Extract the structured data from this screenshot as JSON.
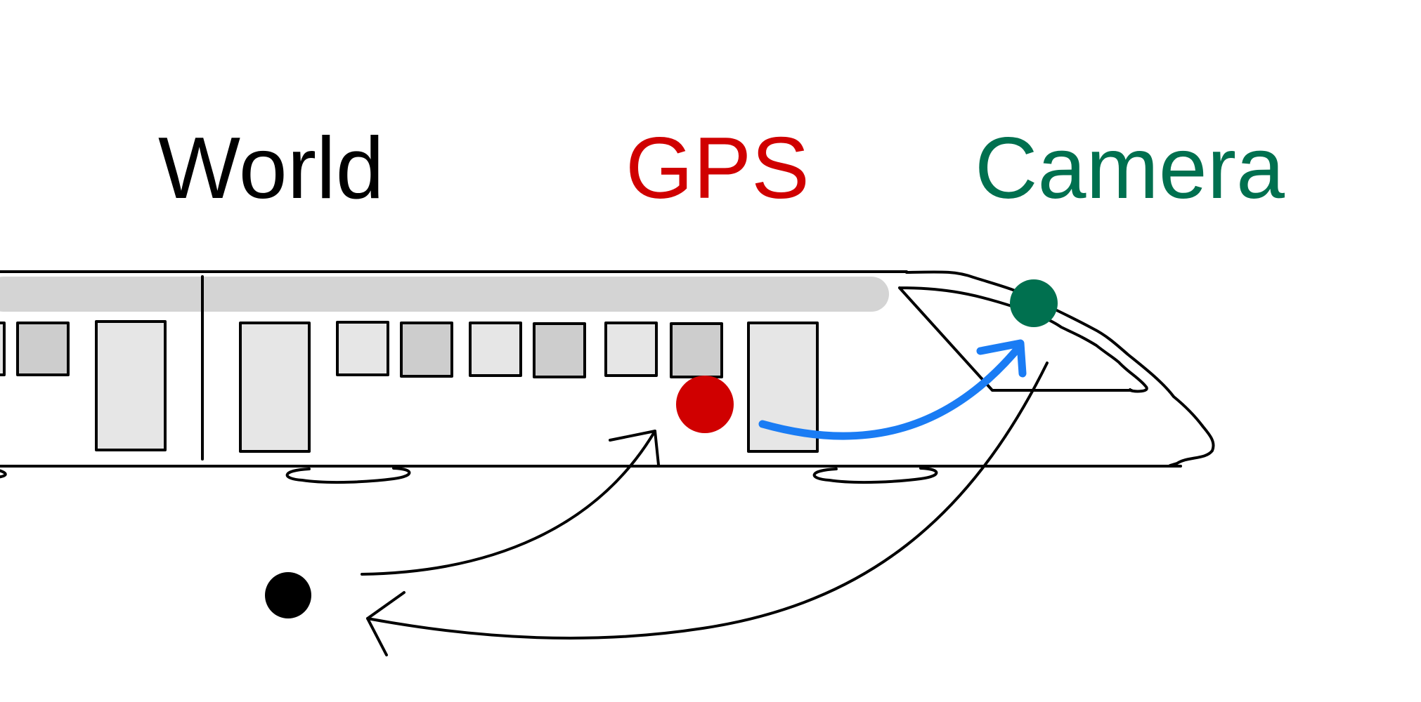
{
  "labels": {
    "world": "World",
    "gps": "GPS",
    "camera": "Camera"
  },
  "colors": {
    "world": "#000000",
    "gps": "#d00000",
    "camera": "#00704f",
    "transform_arrow": "#1a7cf4",
    "outline": "#000000",
    "roof_band": "#d4d4d4",
    "window_light": "#e6e6e6",
    "window_dark": "#cdcdcd"
  },
  "icons": {
    "world_frame": "black-dot",
    "gps_frame": "red-dot",
    "camera_frame": "green-dot",
    "vehicle": "train-icon"
  }
}
